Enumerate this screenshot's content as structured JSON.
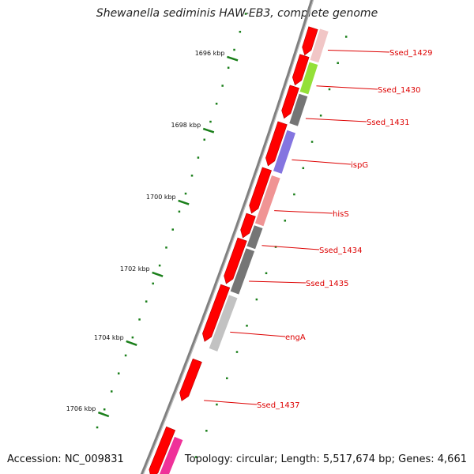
{
  "title": "Shewanella sediminis HAW-EB3, complete genome",
  "footer": {
    "accession": "Accession: NC_009831",
    "summary": "Topology: circular; Length: 5,517,674 bp; Genes: 4,661"
  },
  "ticks": [
    "1696 kbp",
    "1698 kbp",
    "1700 kbp",
    "1702 kbp",
    "1704 kbp",
    "1706 kbp"
  ],
  "genes": [
    {
      "label": "Ssed_1429",
      "color": "#f0c0c0"
    },
    {
      "label": "Ssed_1430",
      "color": "#88dd22"
    },
    {
      "label": "Ssed_1431",
      "color": "#666666"
    },
    {
      "label": "ispG",
      "color": "#7766dd"
    },
    {
      "label": "hisS",
      "color": "#ee8888"
    },
    {
      "label": "Ssed_1434",
      "color": "#666666"
    },
    {
      "label": "Ssed_1435",
      "color": "#666666"
    },
    {
      "label": "engA",
      "color": "#bbbbbb"
    },
    {
      "label": "Ssed_1437",
      "color": null
    },
    {
      "label": "",
      "color": "#ee3399"
    }
  ],
  "colors": {
    "cds": "#ff0000",
    "backbone": "#808080",
    "tick": "#1a7f1a",
    "label": "#dd0000"
  }
}
